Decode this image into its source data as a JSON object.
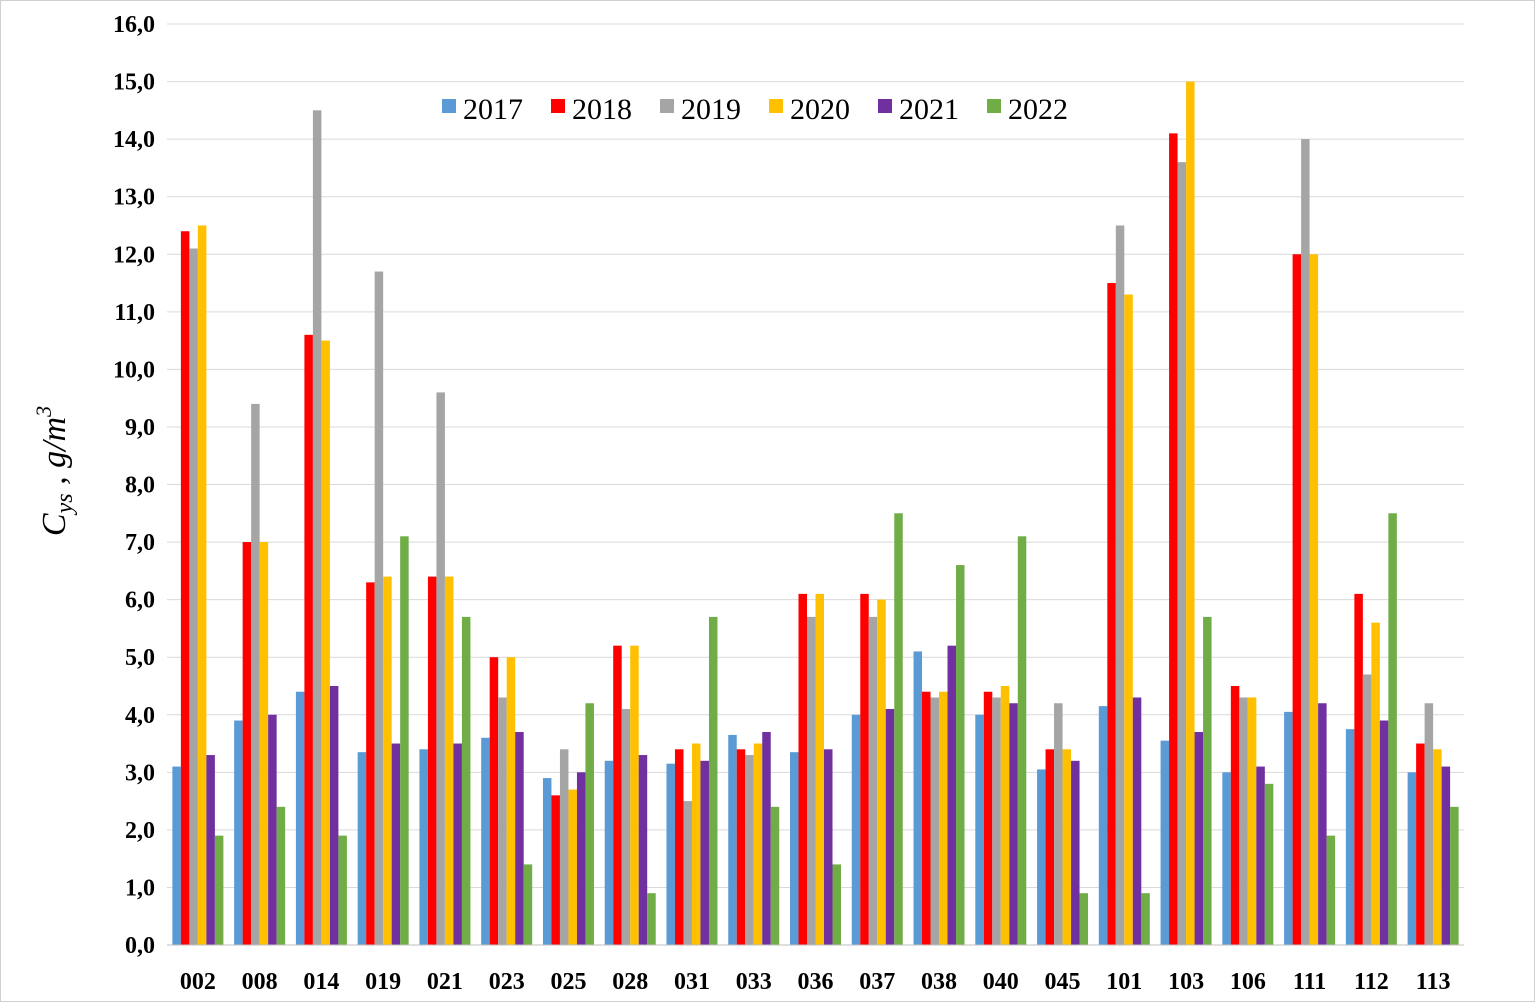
{
  "chart_data": {
    "type": "bar",
    "title": "",
    "xlabel": "",
    "ylabel": "Cys , g/m3",
    "ylabel_parts": {
      "main": "C",
      "sub": "ys",
      "sep": " ,  ",
      "unit": "g/m",
      "sup": "3"
    },
    "ylim": [
      0,
      16
    ],
    "ytick_step": 1,
    "ytick_labels": [
      "0,0",
      "1,0",
      "2,0",
      "3,0",
      "4,0",
      "5,0",
      "6,0",
      "7,0",
      "8,0",
      "9,0",
      "10,0",
      "11,0",
      "12,0",
      "13,0",
      "14,0",
      "15,0",
      "16,0"
    ],
    "grid": true,
    "legend_position": "top-center",
    "categories": [
      "002",
      "008",
      "014",
      "019",
      "021",
      "023",
      "025",
      "028",
      "031",
      "033",
      "036",
      "037",
      "038",
      "040",
      "045",
      "101",
      "103",
      "106",
      "111",
      "112",
      "113"
    ],
    "series": [
      {
        "name": "2017",
        "color": "#5b9bd5",
        "values": [
          3.1,
          3.9,
          4.4,
          3.35,
          3.4,
          3.6,
          2.9,
          3.2,
          3.15,
          3.65,
          3.35,
          4.0,
          5.1,
          4.0,
          3.05,
          4.15,
          3.55,
          3.0,
          4.05,
          3.75,
          3.0
        ]
      },
      {
        "name": "2018",
        "color": "#ff0000",
        "values": [
          12.4,
          7.0,
          10.6,
          6.3,
          6.4,
          5.0,
          2.6,
          5.2,
          3.4,
          3.4,
          6.1,
          6.1,
          4.4,
          4.4,
          3.4,
          11.5,
          14.1,
          4.5,
          12.0,
          6.1,
          3.5
        ]
      },
      {
        "name": "2019",
        "color": "#a5a5a5",
        "values": [
          12.1,
          9.4,
          14.5,
          11.7,
          9.6,
          4.3,
          3.4,
          4.1,
          2.5,
          3.3,
          5.7,
          5.7,
          4.3,
          4.3,
          4.2,
          12.5,
          13.6,
          4.3,
          14.0,
          4.7,
          4.2
        ]
      },
      {
        "name": "2020",
        "color": "#ffc000",
        "values": [
          12.5,
          7.0,
          10.5,
          6.4,
          6.4,
          5.0,
          2.7,
          5.2,
          3.5,
          3.5,
          6.1,
          6.0,
          4.4,
          4.5,
          3.4,
          11.3,
          15.0,
          4.3,
          12.0,
          5.6,
          3.4
        ]
      },
      {
        "name": "2021",
        "color": "#7030a0",
        "values": [
          3.3,
          4.0,
          4.5,
          3.5,
          3.5,
          3.7,
          3.0,
          3.3,
          3.2,
          3.7,
          3.4,
          4.1,
          5.2,
          4.2,
          3.2,
          4.3,
          3.7,
          3.1,
          4.2,
          3.9,
          3.1
        ]
      },
      {
        "name": "2022",
        "color": "#70ad47",
        "values": [
          1.9,
          2.4,
          1.9,
          7.1,
          5.7,
          1.4,
          4.2,
          0.9,
          5.7,
          2.4,
          1.4,
          7.5,
          6.6,
          7.1,
          0.9,
          0.9,
          5.7,
          2.8,
          1.9,
          7.5,
          2.4
        ]
      }
    ]
  }
}
